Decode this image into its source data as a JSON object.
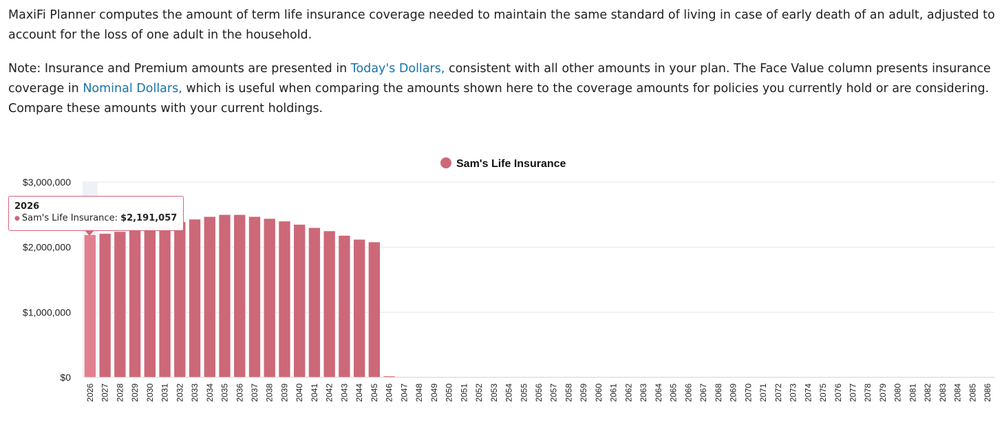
{
  "intro": "MaxiFi Planner computes the amount of term life insurance coverage needed to maintain the same standard of living in case of early death of an adult, adjusted to account for the loss of one adult in the household.",
  "note": {
    "part1": "Note: Insurance and Premium amounts are presented in ",
    "link1": "Today's Dollars,",
    "part2": " consistent with all other amounts in your plan. The Face Value column presents insurance coverage in ",
    "link2": "Nominal Dollars,",
    "part3": " which is useful when comparing the amounts shown here to the coverage amounts for policies you currently hold or are considering. Compare these amounts with your current holdings."
  },
  "tooltip": {
    "year": "2026",
    "series": "Sam's Life Insurance: ",
    "value": "$2,191,057"
  },
  "colors": {
    "bar": "#cd6878",
    "bar_highlight": "#e27f8f",
    "tooltip_border": "#d9637a",
    "link": "#1a73a8"
  },
  "chart_data": {
    "type": "bar",
    "title": "",
    "xlabel": "",
    "ylabel": "",
    "ylim": [
      0,
      3000000
    ],
    "yticks": [
      "$0",
      "$1,000,000",
      "$2,000,000",
      "$3,000,000"
    ],
    "legend": {
      "position": "top-center",
      "entries": [
        "Sam's Life Insurance"
      ]
    },
    "grid": true,
    "highlighted_category": "2026",
    "categories": [
      "2026",
      "2027",
      "2028",
      "2029",
      "2030",
      "2031",
      "2032",
      "2033",
      "2034",
      "2035",
      "2036",
      "2037",
      "2038",
      "2039",
      "2040",
      "2041",
      "2042",
      "2043",
      "2044",
      "2045",
      "2046",
      "2047",
      "2048",
      "2049",
      "2050",
      "2051",
      "2052",
      "2053",
      "2054",
      "2055",
      "2056",
      "2057",
      "2058",
      "2059",
      "2060",
      "2061",
      "2062",
      "2063",
      "2064",
      "2065",
      "2066",
      "2067",
      "2068",
      "2069",
      "2070",
      "2071",
      "2072",
      "2073",
      "2074",
      "2075",
      "2076",
      "2077",
      "2078",
      "2079",
      "2080",
      "2081",
      "2082",
      "2083",
      "2084",
      "2085",
      "2086"
    ],
    "series": [
      {
        "name": "Sam's Life Insurance",
        "values": [
          2191057,
          2210000,
          2240000,
          2280000,
          2320000,
          2350000,
          2390000,
          2430000,
          2470000,
          2500000,
          2500000,
          2470000,
          2440000,
          2400000,
          2350000,
          2300000,
          2250000,
          2180000,
          2120000,
          2080000,
          20000,
          0,
          0,
          0,
          0,
          0,
          0,
          0,
          0,
          0,
          0,
          0,
          0,
          0,
          0,
          0,
          0,
          0,
          0,
          0,
          0,
          0,
          0,
          0,
          0,
          0,
          0,
          0,
          0,
          0,
          0,
          0,
          0,
          0,
          0,
          0,
          0,
          0,
          0,
          0,
          0
        ]
      }
    ]
  }
}
